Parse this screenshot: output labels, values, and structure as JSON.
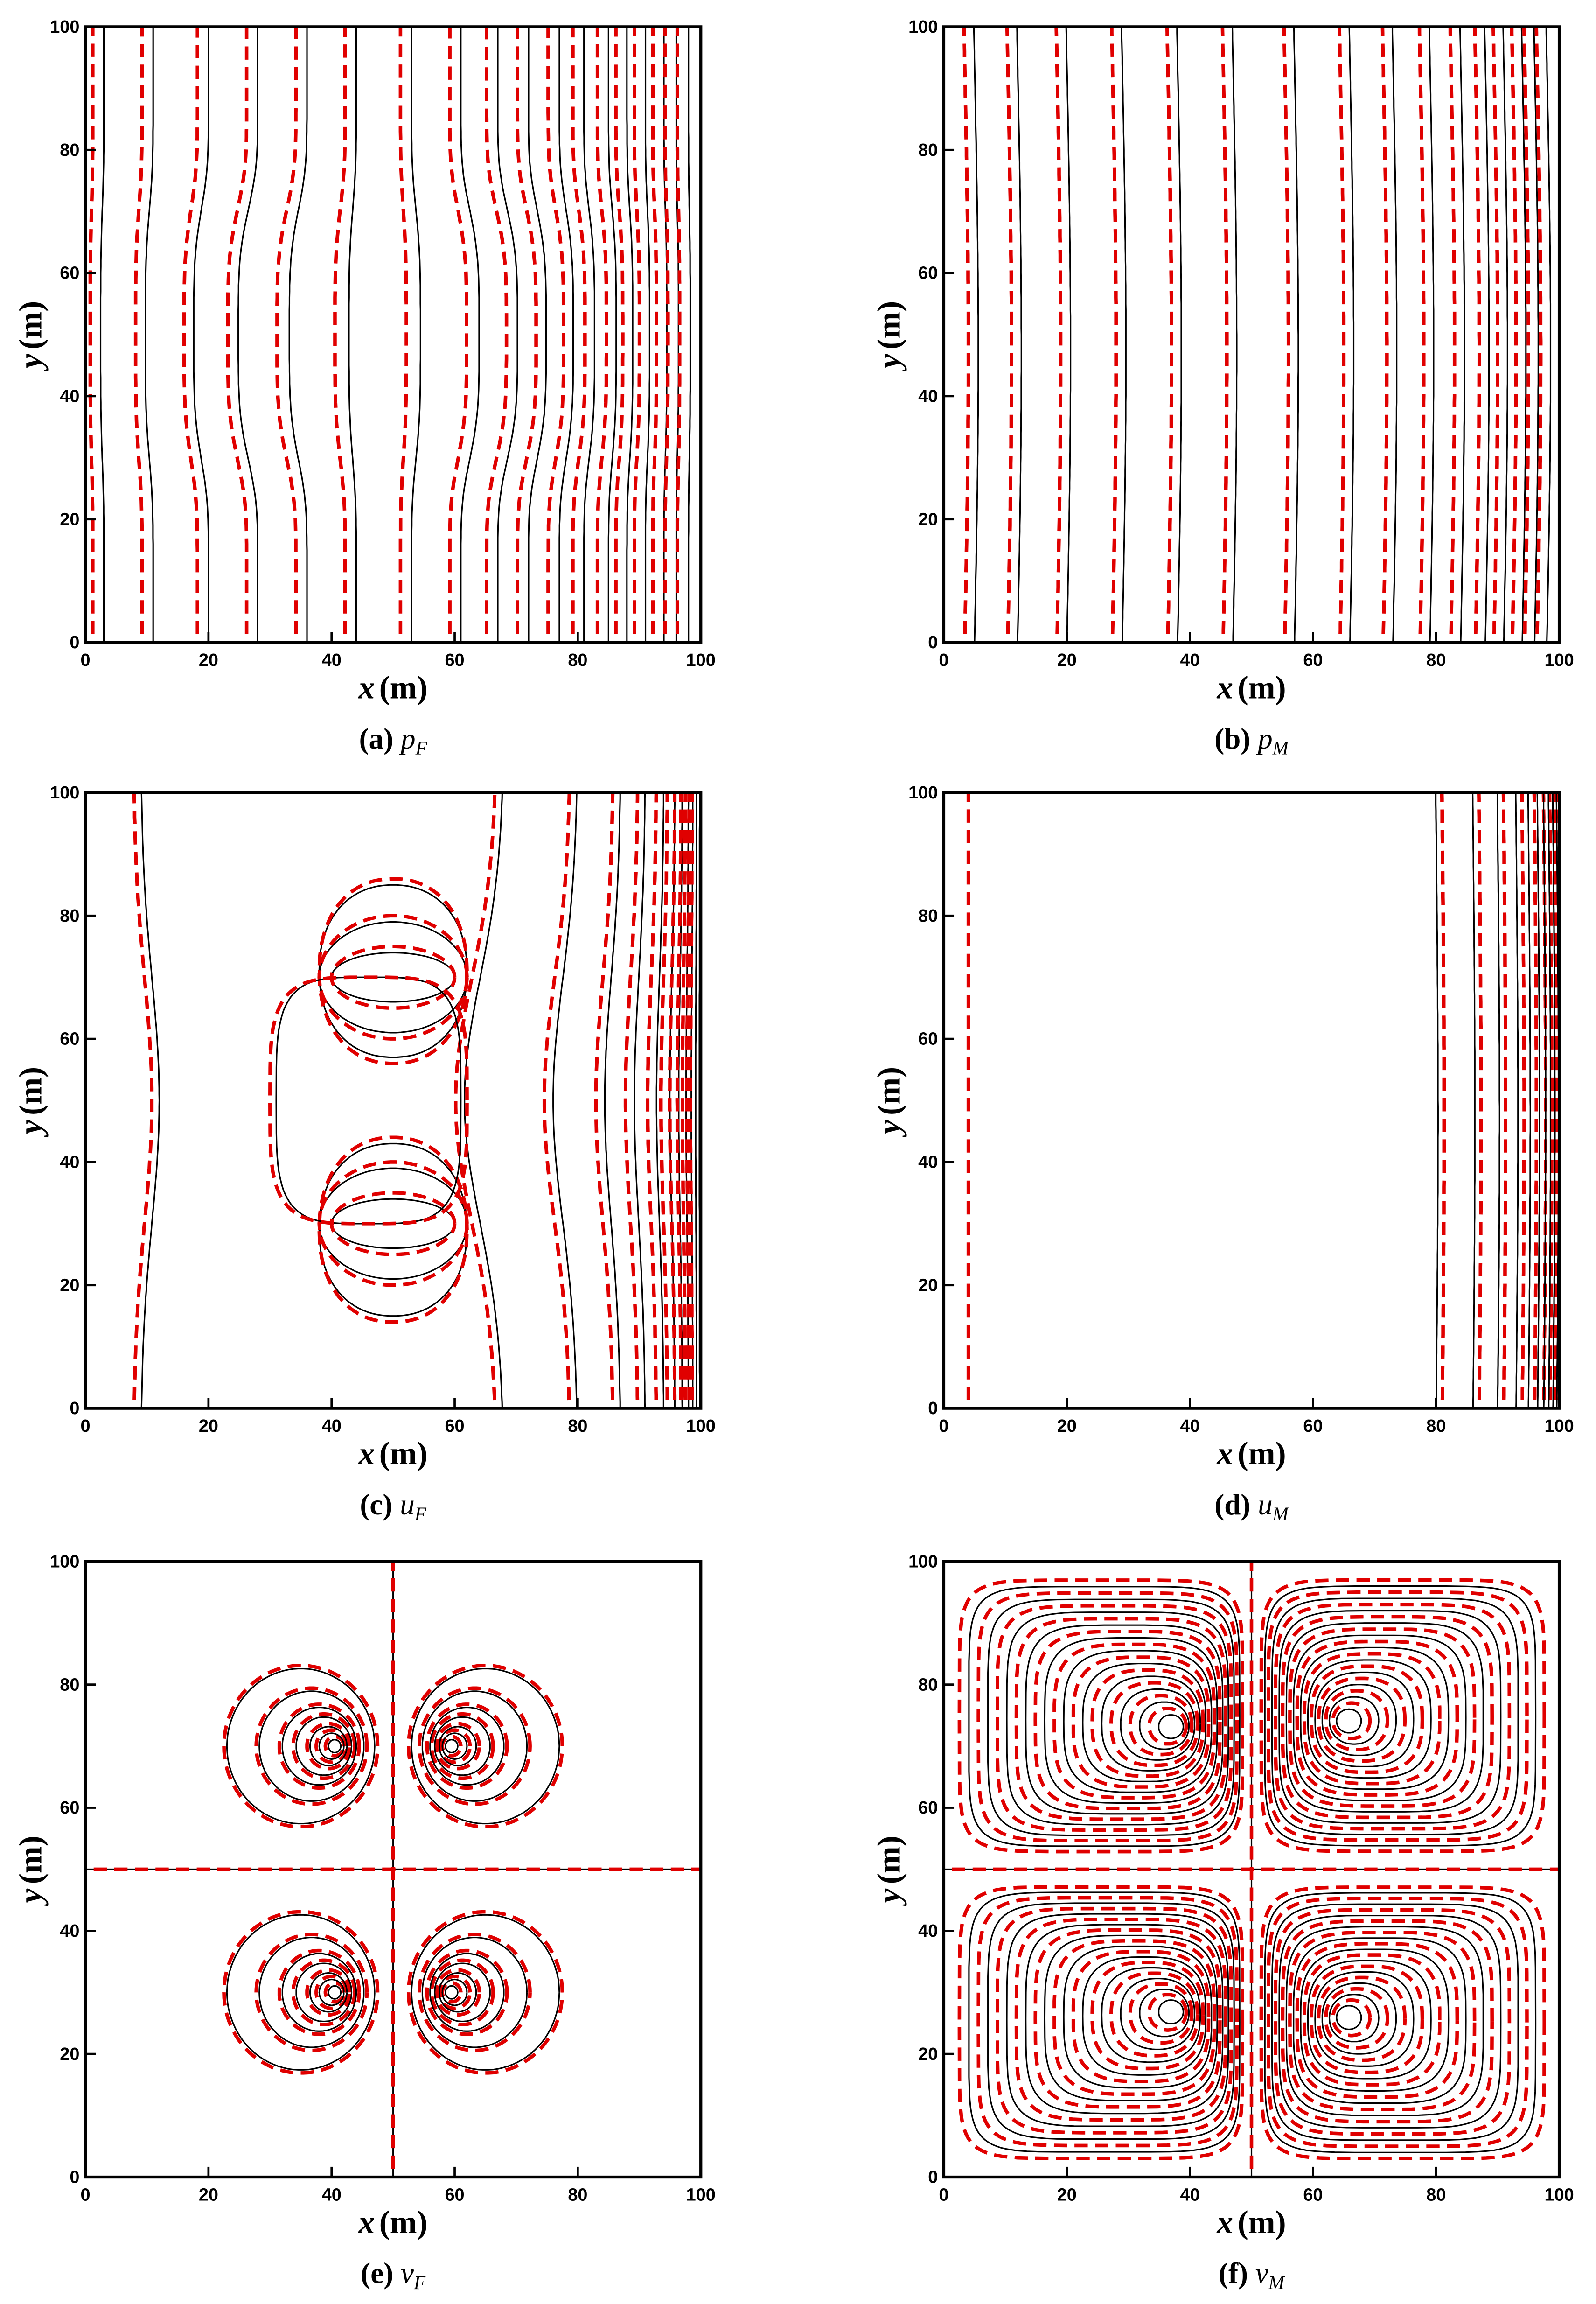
{
  "chart_data": [
    {
      "type": "contour",
      "x_label": {
        "symbol": "x",
        "unit": "(m)"
      },
      "y_label": {
        "symbol": "y",
        "unit": "(m)"
      },
      "caption": {
        "tag": "(a)",
        "symbol": "p",
        "subscript": "F"
      },
      "xlim": [
        0,
        100
      ],
      "ylim": [
        0,
        100
      ],
      "xticks": [
        0,
        20,
        40,
        60,
        80,
        100
      ],
      "yticks": [
        0,
        20,
        40,
        60,
        80,
        100
      ]
    },
    {
      "type": "contour",
      "x_label": {
        "symbol": "x",
        "unit": "(m)"
      },
      "y_label": {
        "symbol": "y",
        "unit": "(m)"
      },
      "caption": {
        "tag": "(b)",
        "symbol": "p",
        "subscript": "M"
      },
      "xlim": [
        0,
        100
      ],
      "ylim": [
        0,
        100
      ],
      "xticks": [
        0,
        20,
        40,
        60,
        80,
        100
      ],
      "yticks": [
        0,
        20,
        40,
        60,
        80,
        100
      ]
    },
    {
      "type": "contour",
      "x_label": {
        "symbol": "x",
        "unit": "(m)"
      },
      "y_label": {
        "symbol": "y",
        "unit": "(m)"
      },
      "caption": {
        "tag": "(c)",
        "symbol": "u",
        "subscript": "F"
      },
      "xlim": [
        0,
        100
      ],
      "ylim": [
        0,
        100
      ],
      "xticks": [
        0,
        20,
        40,
        60,
        80,
        100
      ],
      "yticks": [
        0,
        20,
        40,
        60,
        80,
        100
      ]
    },
    {
      "type": "contour",
      "x_label": {
        "symbol": "x",
        "unit": "(m)"
      },
      "y_label": {
        "symbol": "y",
        "unit": "(m)"
      },
      "caption": {
        "tag": "(d)",
        "symbol": "u",
        "subscript": "M"
      },
      "xlim": [
        0,
        100
      ],
      "ylim": [
        0,
        100
      ],
      "xticks": [
        0,
        20,
        40,
        60,
        80,
        100
      ],
      "yticks": [
        0,
        20,
        40,
        60,
        80,
        100
      ]
    },
    {
      "type": "contour",
      "x_label": {
        "symbol": "x",
        "unit": "(m)"
      },
      "y_label": {
        "symbol": "y",
        "unit": "(m)"
      },
      "caption": {
        "tag": "(e)",
        "symbol": "v",
        "subscript": "F"
      },
      "xlim": [
        0,
        100
      ],
      "ylim": [
        0,
        100
      ],
      "xticks": [
        0,
        20,
        40,
        60,
        80,
        100
      ],
      "yticks": [
        0,
        20,
        40,
        60,
        80,
        100
      ]
    },
    {
      "type": "contour",
      "x_label": {
        "symbol": "x",
        "unit": "(m)"
      },
      "y_label": {
        "symbol": "y",
        "unit": "(m)"
      },
      "caption": {
        "tag": "(f)",
        "symbol": "v",
        "subscript": "M"
      },
      "xlim": [
        0,
        100
      ],
      "ylim": [
        0,
        100
      ],
      "xticks": [
        0,
        20,
        40,
        60,
        80,
        100
      ],
      "yticks": [
        0,
        20,
        40,
        60,
        80,
        100
      ]
    }
  ]
}
